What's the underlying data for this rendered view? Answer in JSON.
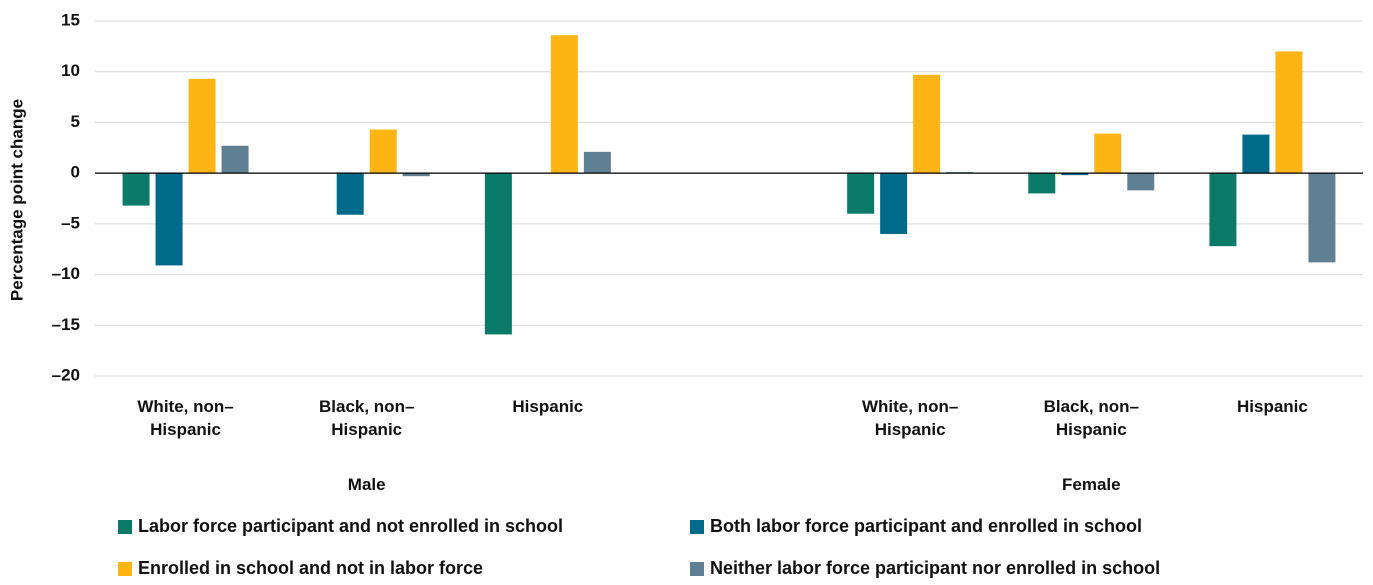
{
  "chart_data": {
    "type": "bar",
    "ylabel": "Percentage point change",
    "categories": [
      "White, non–Hispanic",
      "Black, non–Hispanic",
      "Hispanic",
      null,
      "White, non–Hispanic",
      "Black, non–Hispanic",
      "Hispanic"
    ],
    "group_labels": [
      "Male",
      "Female"
    ],
    "series": [
      {
        "name": "Labor force participant and not enrolled in school",
        "color": "#0b7a68",
        "values": [
          -3.2,
          0,
          -15.9,
          null,
          -4.0,
          -2.0,
          -7.2
        ]
      },
      {
        "name": "Both labor force participant and enrolled in school",
        "color": "#006a8a",
        "values": [
          -9.1,
          -4.1,
          0,
          null,
          -6.0,
          -0.2,
          3.8
        ]
      },
      {
        "name": "Enrolled in school and not in labor force",
        "color": "#fdb515",
        "values": [
          9.3,
          4.3,
          13.6,
          null,
          9.7,
          3.9,
          12.0
        ]
      },
      {
        "name": "Neither labor force participant nor enrolled in school",
        "color": "#5f7f92",
        "values": [
          2.7,
          -0.3,
          2.1,
          null,
          0.1,
          -1.7,
          -8.8
        ]
      }
    ],
    "ylim": [
      -20,
      15
    ],
    "yticks": [
      {
        "value": -20,
        "label": "–20"
      },
      {
        "value": -15,
        "label": "–15"
      },
      {
        "value": -10,
        "label": "–10"
      },
      {
        "value": -5,
        "label": "–5"
      },
      0,
      5,
      10,
      15
    ],
    "grid": true
  }
}
